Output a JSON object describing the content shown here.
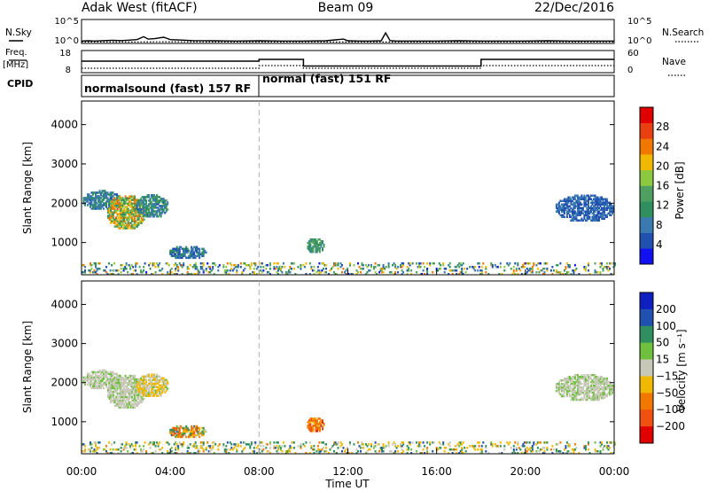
{
  "header": {
    "station": "Adak West (fitACF)",
    "beam": "Beam 09",
    "date": "22/Dec/2016"
  },
  "left_labels": {
    "nsky": "N.Sky",
    "freq": "Freq.",
    "freq_unit": "[MHz]",
    "cpid": "CPID"
  },
  "right_labels": {
    "nsearch": "N.Search",
    "nave": "Nave"
  },
  "colors": {
    "power_scale": [
      "#1010f0",
      "#2050b0",
      "#3a7ab0",
      "#2f8f5f",
      "#4fa060",
      "#8cc840",
      "#f0b800",
      "#f07800",
      "#e84010",
      "#e00000"
    ],
    "velocity_scale": [
      "#1020c0",
      "#2050b0",
      "#2f8f5f",
      "#70c040",
      "#c8c8b8",
      "#f0b800",
      "#f07800",
      "#f05010",
      "#e00000"
    ],
    "dashed_marker": "#b0b0b0"
  },
  "chart_data": [
    {
      "type": "line",
      "name": "noise-panel",
      "ylabel_left": "N.Sky",
      "ylabel_right": "N.Search",
      "left_ticks": [
        "10^5",
        "10^0"
      ],
      "right_ticks": [
        "10^5",
        "10^0"
      ],
      "ylim": [
        0,
        5
      ],
      "series": [
        {
          "style": "solid",
          "x": [
            0,
            0.3,
            0.6,
            1,
            1.4,
            1.8,
            2.2,
            2.5,
            2.8,
            3,
            3.3,
            3.7,
            4,
            4.5,
            5,
            6,
            7,
            8,
            9,
            10,
            11,
            11.8,
            12,
            12.5,
            13,
            13.5,
            13.7,
            13.9,
            14.2,
            15,
            16,
            17,
            18,
            19,
            20,
            21,
            22,
            23,
            24
          ],
          "y": [
            0.5,
            0.55,
            0.5,
            0.6,
            0.65,
            0.6,
            0.7,
            0.8,
            1.4,
            0.9,
            1.0,
            1.3,
            0.8,
            0.7,
            0.6,
            0.55,
            0.5,
            0.55,
            0.5,
            0.5,
            0.55,
            0.9,
            0.55,
            0.5,
            0.5,
            0.55,
            2.2,
            0.6,
            0.5,
            0.5,
            0.5,
            0.55,
            0.5,
            0.5,
            0.5,
            0.55,
            0.5,
            0.5,
            0.5
          ]
        },
        {
          "style": "dotted",
          "x": [
            0,
            2,
            4,
            6,
            8,
            10,
            12,
            14,
            16,
            18,
            20,
            22,
            24
          ],
          "y": [
            0.3,
            0.3,
            0.35,
            0.3,
            0.3,
            0.3,
            0.3,
            0.3,
            0.3,
            0.3,
            0.3,
            0.3,
            0.3
          ]
        }
      ]
    },
    {
      "type": "line",
      "name": "freq-nave-panel",
      "ylabel_left": "Freq. [MHz]",
      "ylabel_right": "Nave",
      "left_ticks": [
        "18",
        "8"
      ],
      "right_ticks": [
        "60",
        "0"
      ],
      "ylim": [
        8,
        18
      ],
      "series": [
        {
          "style": "solid",
          "name": "Freq.",
          "x": [
            0,
            8,
            8,
            10,
            10,
            18,
            18,
            24
          ],
          "y": [
            13.2,
            13.2,
            14.0,
            14.0,
            11.0,
            11.0,
            14.0,
            14.0
          ]
        },
        {
          "style": "dotted",
          "name": "Nave",
          "x": [
            0,
            8,
            8,
            10,
            10,
            18,
            18,
            24
          ],
          "y": [
            10.0,
            10.0,
            11.2,
            11.2,
            10.0,
            10.0,
            11.2,
            11.2
          ]
        }
      ]
    },
    {
      "type": "table",
      "name": "cpid-bar",
      "segments": [
        {
          "start": 0,
          "end": 8,
          "label": "normalsound (fast) 157 RF"
        },
        {
          "start": 8,
          "end": 24,
          "label": "normal (fast) 151 RF"
        }
      ]
    },
    {
      "type": "heatmap",
      "name": "power-panel",
      "ylabel": "Slant Range [km]",
      "yticks": [
        1000,
        2000,
        3000,
        4000
      ],
      "ylim": [
        180,
        4600
      ],
      "xlim": [
        0,
        24
      ],
      "colorbar": {
        "label": "Power [dB]",
        "ticks": [
          "4",
          "8",
          "12",
          "16",
          "20",
          "24",
          "28"
        ],
        "range": [
          0,
          32
        ]
      },
      "regions": [
        {
          "x": [
            0,
            1.8
          ],
          "y": [
            1800,
            2300
          ],
          "v": [
            6,
            12
          ]
        },
        {
          "x": [
            1.1,
            2.9
          ],
          "y": [
            1300,
            2200
          ],
          "v": [
            10,
            26
          ]
        },
        {
          "x": [
            2.4,
            3.9
          ],
          "y": [
            1600,
            2200
          ],
          "v": [
            6,
            14
          ]
        },
        {
          "x": [
            3.9,
            5.6
          ],
          "y": [
            550,
            900
          ],
          "v": [
            4,
            12
          ]
        },
        {
          "x": [
            10.1,
            10.9
          ],
          "y": [
            700,
            1100
          ],
          "v": [
            8,
            16
          ]
        },
        {
          "x": [
            21.3,
            24
          ],
          "y": [
            1500,
            2200
          ],
          "v": [
            4,
            8
          ]
        },
        {
          "x": [
            0,
            24
          ],
          "y": [
            180,
            480
          ],
          "v": [
            2,
            24
          ]
        }
      ]
    },
    {
      "type": "heatmap",
      "name": "velocity-panel",
      "ylabel": "Slant Range [km]",
      "yticks": [
        1000,
        2000,
        3000,
        4000
      ],
      "ylim": [
        180,
        4600
      ],
      "xlim": [
        0,
        24
      ],
      "xticks": [
        "00:00",
        "04:00",
        "08:00",
        "12:00",
        "16:00",
        "20:00",
        "00:00"
      ],
      "xlabel": "Time UT",
      "colorbar": {
        "label": "Velocity [m s⁻¹]",
        "ticks": [
          "200",
          "100",
          "50",
          "15",
          "−15",
          "−50",
          "−100",
          "−200"
        ]
      },
      "regions": [
        {
          "x": [
            0,
            1.8
          ],
          "y": [
            1800,
            2300
          ],
          "v": [
            -10,
            10
          ]
        },
        {
          "x": [
            1.1,
            2.9
          ],
          "y": [
            1300,
            2200
          ],
          "v": [
            -10,
            10
          ]
        },
        {
          "x": [
            2.4,
            3.9
          ],
          "y": [
            1600,
            2200
          ],
          "v": [
            -40,
            10
          ]
        },
        {
          "x": [
            3.9,
            5.6
          ],
          "y": [
            550,
            900
          ],
          "v": [
            -120,
            60
          ]
        },
        {
          "x": [
            10.1,
            10.9
          ],
          "y": [
            700,
            1100
          ],
          "v": [
            -160,
            -30
          ]
        },
        {
          "x": [
            21.3,
            24
          ],
          "y": [
            1500,
            2200
          ],
          "v": [
            -10,
            10
          ]
        },
        {
          "x": [
            0,
            24
          ],
          "y": [
            180,
            480
          ],
          "v": [
            -60,
            60
          ]
        }
      ],
      "marker_time": 8
    }
  ]
}
